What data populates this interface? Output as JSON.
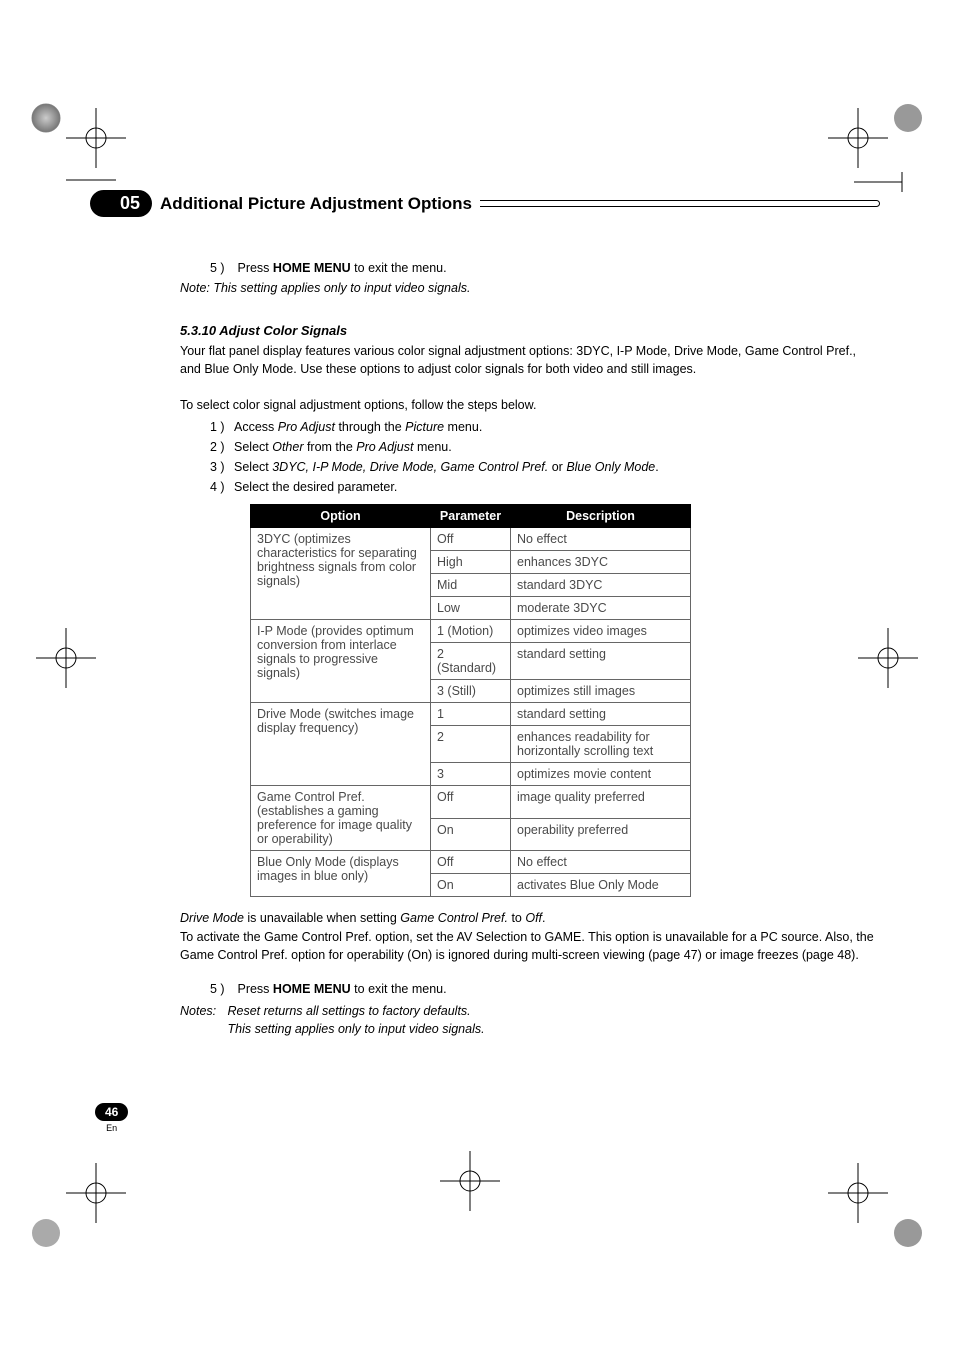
{
  "chapter": {
    "number": "05",
    "title": "Additional Picture Adjustment Options"
  },
  "top_step": {
    "num": "5 )",
    "pre": "Press ",
    "bold": "HOME MENU",
    "post": " to exit the menu."
  },
  "top_note": "Note: This setting applies only to input video signals.",
  "section": {
    "heading": "5.3.10  Adjust Color Signals",
    "intro": "Your flat panel display features various color signal adjustment options: 3DYC, I-P Mode, Drive Mode, Game Control Pref., and Blue Only Mode. Use these options to adjust color signals for both video and still images.",
    "lead": "To select color signal adjustment options, follow the steps below.",
    "steps": [
      {
        "num": "1 )",
        "pre": "Access ",
        "i1": "Pro Adjust ",
        "mid": "through the ",
        "i2": "Picture",
        "post": " menu."
      },
      {
        "num": "2 )",
        "pre": "Select ",
        "i1": "Other",
        "mid": " from the ",
        "i2": "Pro Adjust",
        "post": " menu."
      },
      {
        "num": "3 )",
        "pre": "Select ",
        "i1": "3DYC, I-P Mode, Drive Mode, Game Control Pref.",
        "mid": " or ",
        "i2": "Blue Only Mode",
        "post": "."
      },
      {
        "num": "4 )",
        "pre": "Select the desired parameter.",
        "i1": "",
        "mid": "",
        "i2": "",
        "post": ""
      }
    ]
  },
  "table": {
    "headers": {
      "option": "Option",
      "parameter": "Parameter",
      "description": "Description"
    },
    "groups": [
      {
        "option": "3DYC (optimizes characteristics for separating brightness signals from color signals)",
        "rows": [
          {
            "param": "Off",
            "desc": "No effect"
          },
          {
            "param": "High",
            "desc": "enhances 3DYC"
          },
          {
            "param": "Mid",
            "desc": "standard 3DYC"
          },
          {
            "param": "Low",
            "desc": "moderate 3DYC"
          }
        ]
      },
      {
        "option": "I-P Mode (provides optimum conversion from interlace signals to progressive signals)",
        "rows": [
          {
            "param": "1 (Motion)",
            "desc": "optimizes video images"
          },
          {
            "param": "2 (Standard)",
            "desc": "standard setting"
          },
          {
            "param": "3 (Still)",
            "desc": "optimizes still images"
          }
        ]
      },
      {
        "option": "Drive Mode (switches image display frequency)",
        "rows": [
          {
            "param": "1",
            "desc": "standard setting"
          },
          {
            "param": "2",
            "desc": "enhances readability for horizontally scrolling text"
          },
          {
            "param": "3",
            "desc": "optimizes movie content"
          }
        ]
      },
      {
        "option": "Game Control Pref. (establishes a gaming preference for image quality or operability)",
        "rows": [
          {
            "param": "Off",
            "desc": "image quality preferred"
          },
          {
            "param": "On",
            "desc": "operability preferred"
          }
        ]
      },
      {
        "option": "Blue Only Mode (displays images in blue only)",
        "rows": [
          {
            "param": "Off",
            "desc": "No effect"
          },
          {
            "param": "On",
            "desc": "activates Blue Only Mode"
          }
        ]
      }
    ]
  },
  "after": {
    "line1_a": "Drive Mode",
    "line1_b": " is unavailable when setting ",
    "line1_c": "Game Control Pref.",
    "line1_d": " to ",
    "line1_e": "Off",
    "line1_f": ".",
    "para": "To activate the Game Control Pref. option, set the AV Selection to GAME. This option is unavailable for a PC source. Also, the Game Control Pref. option for operability (On) is ignored during multi-screen viewing (page 47) or image freezes (page 48)."
  },
  "bottom_step": {
    "num": "5 )",
    "pre": "Press ",
    "bold": "HOME MENU",
    "post": " to exit the menu."
  },
  "bottom_notes": {
    "label": "Notes:",
    "line1": "Reset returns all settings to factory defaults.",
    "line2": "This setting applies only to input video signals."
  },
  "page": {
    "num": "46",
    "lang": "En"
  },
  "colors": {
    "black": "#000000",
    "gray": "#4a4a4a",
    "border": "#666666"
  }
}
